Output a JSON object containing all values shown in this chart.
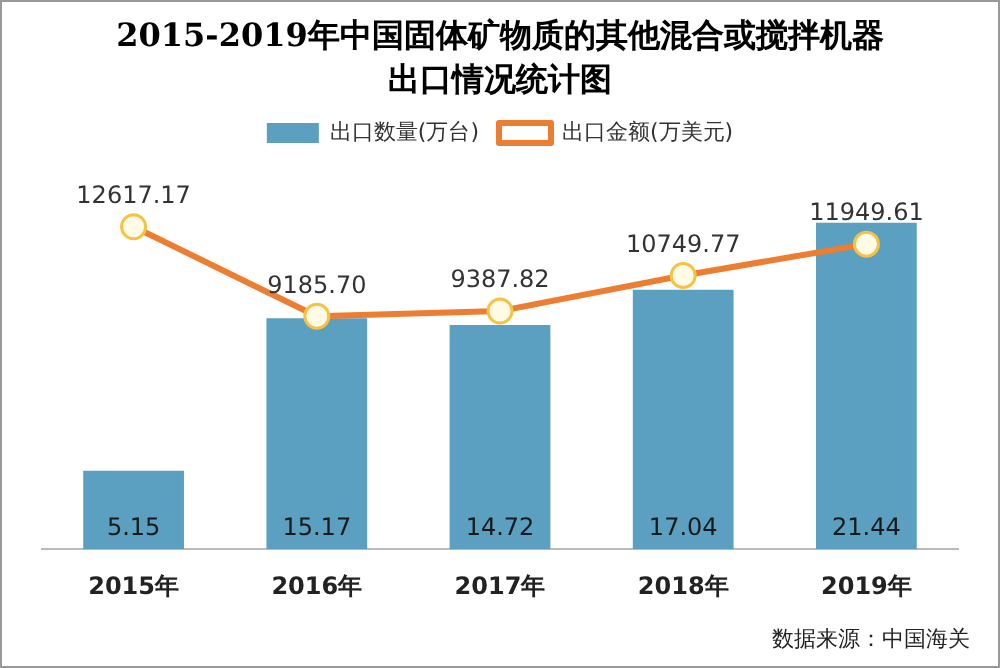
{
  "chart_data": {
    "type": "bar",
    "title": "2015-2019年中国固体矿物质的其他混合或搅拌机器出口情况统计图",
    "categories": [
      "2015年",
      "2016年",
      "2017年",
      "2018年",
      "2019年"
    ],
    "series": [
      {
        "name": "出口数量(万台)",
        "color": "#5b9fc1",
        "values": [
          5.15,
          15.17,
          14.72,
          17.04,
          21.44
        ]
      },
      {
        "name": "出口金额(万美元)",
        "type": "line",
        "axis": "y2",
        "color": "#ed7d31",
        "values": [
          12617.17,
          9185.7,
          9387.82,
          10749.77,
          11949.61
        ],
        "value_labels": [
          "12617.17",
          "9185.70",
          "9387.82",
          "10749.77",
          "11949.61"
        ]
      }
    ],
    "data_labels": true,
    "legend": "top",
    "marker": "circle",
    "tick_labels": "x",
    "grid": false,
    "annotations": [
      "数据来源：中国海关"
    ]
  }
}
